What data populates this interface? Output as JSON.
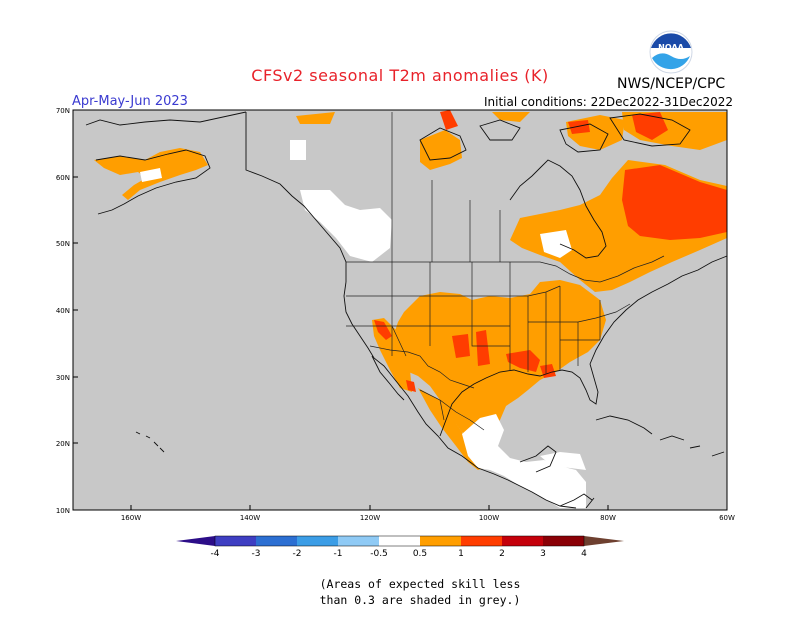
{
  "title": "CFSv2 seasonal T2m anomalies (K)",
  "agency": "NWS/NCEP/CPC",
  "logo_text": "NOAA",
  "period": "Apr-May-Jun 2023",
  "initial_conditions": "Initial conditions: 22Dec2022-31Dec2022",
  "lat_labels": [
    "70N",
    "60N",
    "50N",
    "40N",
    "30N",
    "20N",
    "10N"
  ],
  "lon_labels": [
    "160W",
    "140W",
    "120W",
    "100W",
    "80W",
    "60W"
  ],
  "colorbar": {
    "ticks": [
      "-4",
      "-3",
      "-2",
      "-1",
      "-0.5",
      "0.5",
      "1",
      "2",
      "3",
      "4"
    ],
    "colors": [
      "#2c0d88",
      "#3e3ec2",
      "#2c6fd2",
      "#3b9de6",
      "#8fcaf5",
      "#ffffff",
      "#ff9e00",
      "#ff3d00",
      "#c4000a",
      "#8a0006",
      "#c4998a",
      "#6e4030"
    ]
  },
  "note_line1": "(Areas of expected skill less",
  "note_line2": "than 0.3 are shaded in grey.)",
  "map_colors": {
    "grey": "#c8c8c8",
    "orange": "#ff9e00",
    "red": "#ff3d00",
    "white": "#ffffff"
  }
}
